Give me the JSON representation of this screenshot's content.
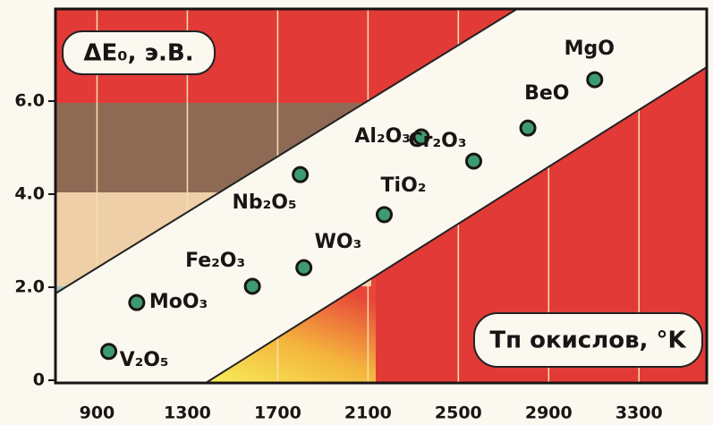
{
  "chart_data": {
    "type": "scatter",
    "x_label": "Tп окислов, °K",
    "y_label": "ΔE₀, э.В.",
    "names": [
      "V₂O₅",
      "MoO₃",
      "Fe₂O₃",
      "WO₃",
      "Nb₂O₅",
      "TiO₂",
      "Al₂O₃",
      "Cr₂O₃",
      "BeO",
      "MgO"
    ],
    "x": [
      952,
      1076,
      1588,
      1816,
      1800,
      2172,
      2336,
      2568,
      2808,
      3104
    ],
    "values": [
      0.62,
      1.67,
      2.02,
      2.42,
      4.42,
      3.56,
      5.23,
      4.71,
      5.42,
      6.46
    ],
    "color": "#3d9b72",
    "xlim": [
      716,
      3600
    ],
    "xticks": [
      900,
      1300,
      1700,
      2100,
      2500,
      2900,
      3300
    ],
    "ylim": [
      0,
      8
    ],
    "yticks": [
      0,
      {
        "value": 2,
        "label": "2.0"
      },
      {
        "value": 4,
        "label": "4.0"
      },
      {
        "value": 6,
        "label": "6.0"
      }
    ]
  }
}
